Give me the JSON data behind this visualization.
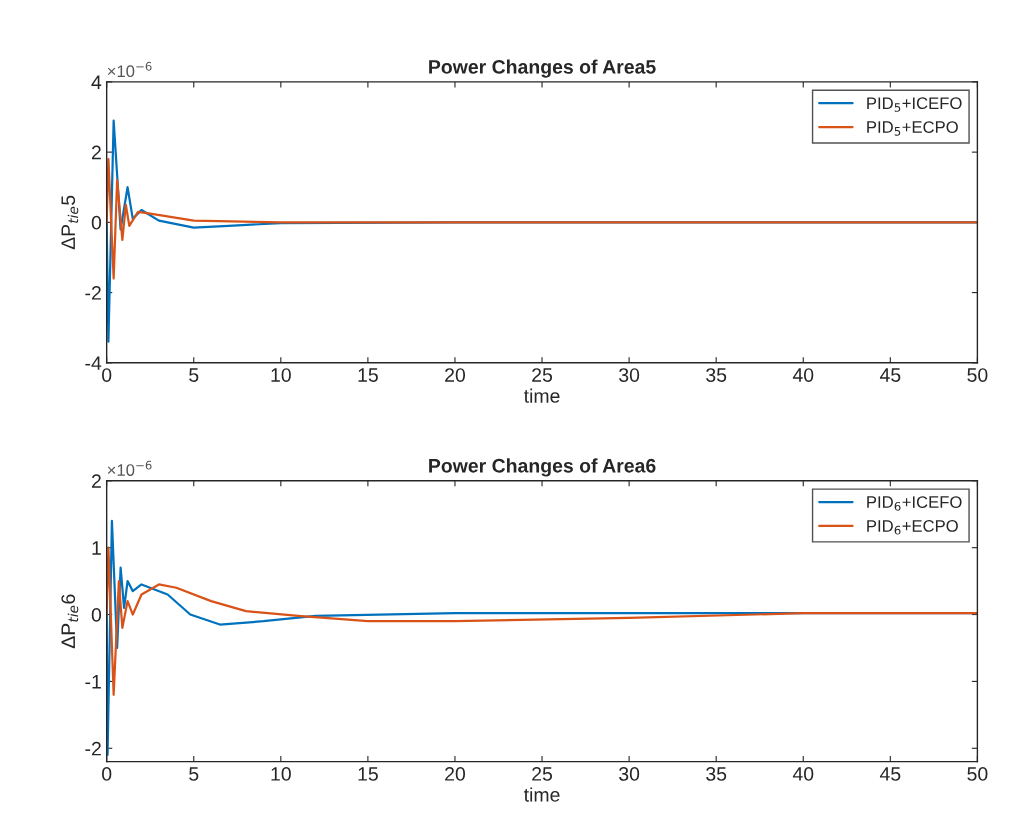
{
  "chart_data": [
    {
      "type": "line",
      "title": "Power Changes of Area5",
      "xlabel": "time",
      "ylabel": "ΔP$_{tie}$5",
      "annotations": [
        "×10$^{−6}$"
      ],
      "xlim": [
        0,
        50
      ],
      "ylim": [
        -4,
        4
      ],
      "xticks": [
        0,
        5,
        10,
        15,
        20,
        25,
        30,
        35,
        40,
        45,
        50
      ],
      "yticks": [
        -4,
        -2,
        0,
        2,
        4
      ],
      "grid": false,
      "legend": "top right",
      "series": [
        {
          "name": "PID$_{5}$+ICEFO",
          "color": "#0072bd",
          "x": [
            0,
            0.1,
            0.4,
            0.8,
            1.2,
            1.5,
            2,
            3,
            5,
            7,
            10,
            20,
            50
          ],
          "values": [
            0,
            -3.4,
            2.9,
            -0.2,
            1.0,
            0.1,
            0.35,
            0.05,
            -0.15,
            -0.1,
            -0.02,
            0,
            0
          ]
        },
        {
          "name": "PID$_{5}$+ECPO",
          "color": "#d95319",
          "x": [
            0,
            0.1,
            0.4,
            0.6,
            0.9,
            1.1,
            1.3,
            1.8,
            2.5,
            5,
            10,
            50
          ],
          "values": [
            0,
            1.8,
            -1.6,
            1.2,
            -0.5,
            0.5,
            -0.1,
            0.3,
            0.25,
            0.05,
            0,
            0
          ]
        }
      ]
    },
    {
      "type": "line",
      "title": "Power Changes of Area6",
      "xlabel": "time",
      "ylabel": "ΔP$_{tie}$6",
      "annotations": [
        "×10$^{−6}$"
      ],
      "xlim": [
        0,
        50
      ],
      "ylim": [
        -2.2,
        2
      ],
      "xticks": [
        0,
        5,
        10,
        15,
        20,
        25,
        30,
        35,
        40,
        45,
        50
      ],
      "yticks": [
        -2,
        -1,
        0,
        1,
        2
      ],
      "grid": false,
      "legend": "top right",
      "series": [
        {
          "name": "PID$_{6}$+ICEFO",
          "color": "#0072bd",
          "x": [
            0,
            0.05,
            0.3,
            0.6,
            0.8,
            1.0,
            1.2,
            1.5,
            2,
            3.5,
            4.8,
            6.5,
            9,
            12,
            20,
            30,
            50
          ],
          "values": [
            0,
            -2.1,
            1.4,
            -0.5,
            0.7,
            0.1,
            0.5,
            0.35,
            0.45,
            0.3,
            0,
            -0.15,
            -0.1,
            -0.02,
            0.02,
            0.02,
            0.02
          ]
        },
        {
          "name": "PID$_{6}$+ECPO",
          "color": "#d95319",
          "x": [
            0,
            0.1,
            0.4,
            0.7,
            0.9,
            1.2,
            1.5,
            2,
            3,
            4,
            6,
            8,
            11,
            15,
            20,
            30,
            40,
            50
          ],
          "values": [
            0,
            1.0,
            -1.2,
            0.5,
            -0.2,
            0.2,
            0,
            0.3,
            0.45,
            0.4,
            0.2,
            0.05,
            -0.02,
            -0.1,
            -0.1,
            -0.05,
            0.02,
            0.02
          ]
        }
      ]
    }
  ]
}
